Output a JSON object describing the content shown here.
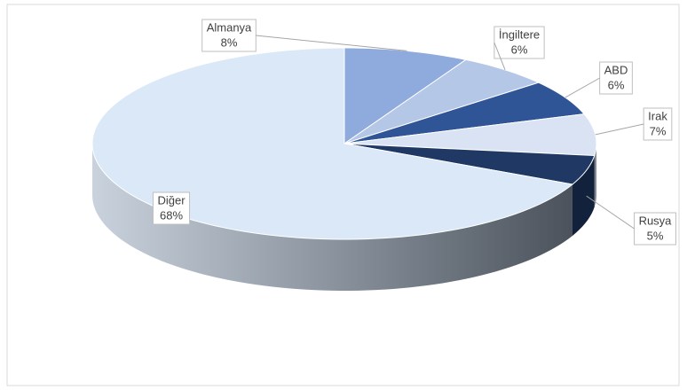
{
  "chart_data": {
    "type": "pie3d",
    "categories": [
      "Almanya",
      "İngiltere",
      "ABD",
      "Irak",
      "Rusya",
      "Diğer"
    ],
    "values": [
      8,
      6,
      6,
      7,
      5,
      68
    ],
    "value_labels": [
      "8%",
      "6%",
      "6%",
      "7%",
      "5%",
      "68%"
    ],
    "colors": [
      "#8faadc",
      "#b4c7e7",
      "#2f5597",
      "#dae3f3",
      "#1f3864",
      "#dae8f8"
    ]
  }
}
